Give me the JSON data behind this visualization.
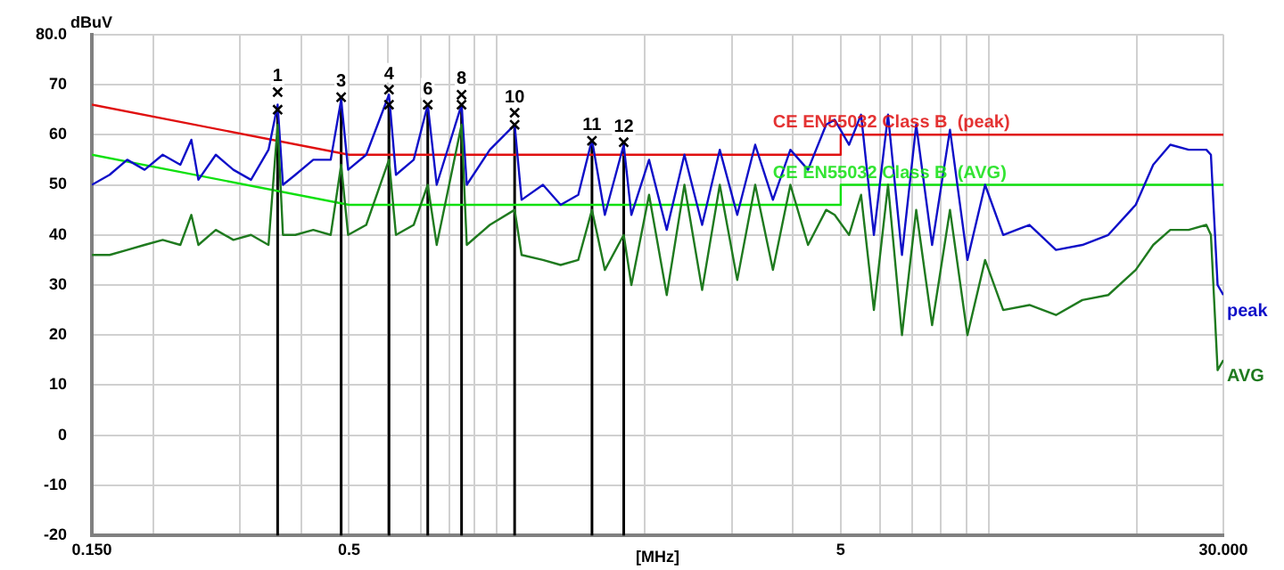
{
  "chart_data": {
    "type": "line",
    "xlabel": "[MHz]",
    "ylabel": "dBuV",
    "log": "x",
    "grid": true,
    "legend": false,
    "xlim": [
      0.15,
      30
    ],
    "ylim": [
      -20,
      80
    ],
    "xticks": [
      {
        "value": 0.15,
        "label": "0.150"
      },
      {
        "value": 0.2,
        "label": null
      },
      {
        "value": 0.3,
        "label": null
      },
      {
        "value": 0.4,
        "label": null
      },
      0.5,
      {
        "value": 0.6,
        "label": null
      },
      {
        "value": 0.7,
        "label": null
      },
      {
        "value": 0.8,
        "label": null
      },
      {
        "value": 0.9,
        "label": null
      },
      {
        "value": 1,
        "label": null
      },
      {
        "value": 2,
        "label": null
      },
      {
        "value": 3,
        "label": null
      },
      {
        "value": 4,
        "label": null
      },
      5,
      {
        "value": 6,
        "label": null
      },
      {
        "value": 7,
        "label": null
      },
      {
        "value": 8,
        "label": null
      },
      {
        "value": 9,
        "label": null
      },
      {
        "value": 10,
        "label": null
      },
      {
        "value": 20,
        "label": null
      },
      {
        "value": 30,
        "label": "30.000"
      }
    ],
    "yticks": [
      -20,
      -10,
      0,
      10,
      20,
      30,
      40,
      50,
      60,
      70,
      {
        "value": 80,
        "label": "80.0"
      }
    ],
    "series": [
      {
        "name": "CE EN55032 Class B  (peak)",
        "color": "#e01010",
        "x": [
          0.15,
          0.5,
          5,
          5,
          30
        ],
        "values": [
          66,
          56,
          56,
          60,
          60
        ]
      },
      {
        "name": "CE EN55032 Class B  (AVG)",
        "color": "#10e010",
        "x": [
          0.15,
          0.5,
          5,
          5,
          30
        ],
        "values": [
          56,
          46,
          46,
          50,
          50
        ]
      },
      {
        "name": "peak",
        "color": "#1010c8",
        "x": [
          0.15,
          0.163,
          0.177,
          0.192,
          0.209,
          0.227,
          0.239,
          0.247,
          0.268,
          0.291,
          0.316,
          0.343,
          0.358,
          0.367,
          0.389,
          0.423,
          0.459,
          0.482,
          0.498,
          0.542,
          0.603,
          0.623,
          0.677,
          0.723,
          0.754,
          0.847,
          0.868,
          0.967,
          1.086,
          1.122,
          1.24,
          1.347,
          1.463,
          1.56,
          1.657,
          1.81,
          1.876,
          2.038,
          2.214,
          2.405,
          2.613,
          2.838,
          3.08,
          3.35,
          3.64,
          3.95,
          4.29,
          4.67,
          4.86,
          5.2,
          5.5,
          5.84,
          6.24,
          6.66,
          7.12,
          7.67,
          8.34,
          9.05,
          9.83,
          10.7,
          12.1,
          13.7,
          15.5,
          17.5,
          19.9,
          21.6,
          23.4,
          25.5,
          27.7,
          28.3,
          29.2,
          30
        ],
        "values": [
          50,
          52,
          55,
          53,
          56,
          54,
          59,
          51,
          56,
          53,
          51,
          57,
          66,
          50,
          52,
          55,
          55,
          67,
          53,
          56,
          68,
          52,
          55,
          66,
          50,
          66,
          50,
          57,
          62,
          47,
          50,
          46,
          48,
          59,
          44,
          58,
          44,
          55,
          41,
          56,
          42,
          57,
          44,
          58,
          47,
          57,
          53,
          62,
          63,
          58,
          64,
          40,
          64,
          36,
          62,
          38,
          61,
          35,
          50,
          40,
          42,
          37,
          38,
          40,
          46,
          54,
          58,
          57,
          57,
          56,
          30,
          28
        ]
      },
      {
        "name": "AVG",
        "color": "#1f7a1f",
        "x": [
          0.15,
          0.163,
          0.177,
          0.192,
          0.209,
          0.227,
          0.239,
          0.247,
          0.268,
          0.291,
          0.316,
          0.343,
          0.358,
          0.367,
          0.389,
          0.423,
          0.459,
          0.482,
          0.498,
          0.542,
          0.603,
          0.623,
          0.677,
          0.723,
          0.754,
          0.847,
          0.868,
          0.967,
          1.086,
          1.122,
          1.24,
          1.347,
          1.463,
          1.56,
          1.657,
          1.81,
          1.876,
          2.038,
          2.214,
          2.405,
          2.613,
          2.838,
          3.08,
          3.35,
          3.64,
          3.95,
          4.29,
          4.67,
          4.86,
          5.2,
          5.5,
          5.84,
          6.24,
          6.66,
          7.12,
          7.67,
          8.34,
          9.05,
          9.83,
          10.7,
          12.1,
          13.7,
          15.5,
          17.5,
          19.9,
          21.6,
          23.4,
          25.5,
          27.7,
          28.3,
          29.2,
          30
        ],
        "values": [
          36,
          36,
          37,
          38,
          39,
          38,
          44,
          38,
          41,
          39,
          40,
          38,
          62,
          40,
          40,
          41,
          40,
          54,
          40,
          42,
          55,
          40,
          42,
          50,
          38,
          62,
          38,
          42,
          45,
          36,
          35,
          34,
          35,
          45,
          33,
          40,
          30,
          48,
          28,
          50,
          29,
          50,
          31,
          50,
          33,
          50,
          38,
          45,
          44,
          40,
          48,
          25,
          50,
          20,
          45,
          22,
          45,
          20,
          35,
          25,
          26,
          24,
          27,
          28,
          33,
          38,
          41,
          41,
          42,
          40,
          13,
          15
        ]
      },
      {
        "type": "scatter",
        "marker": "cross",
        "color": "#000000",
        "x": [
          0.358,
          0.358,
          0.482,
          0.603,
          0.603,
          0.723,
          0.847,
          0.847,
          1.086,
          1.086,
          1.56,
          1.81
        ],
        "values": [
          68.5,
          65,
          67.5,
          69,
          66,
          66,
          68,
          66,
          62,
          64.4,
          58.8,
          58.5
        ]
      }
    ],
    "ref_lines": [
      {
        "axis": "x",
        "value": 0.358,
        "color": "#000000"
      },
      {
        "axis": "x",
        "value": 0.482,
        "color": "#000000"
      },
      {
        "axis": "x",
        "value": 0.603,
        "color": "#000000"
      },
      {
        "axis": "x",
        "value": 0.723,
        "color": "#000000"
      },
      {
        "axis": "x",
        "value": 0.847,
        "color": "#000000"
      },
      {
        "axis": "x",
        "value": 1.086,
        "color": "#000000"
      },
      {
        "axis": "x",
        "value": 1.56,
        "color": "#000000"
      },
      {
        "axis": "x",
        "value": 1.81,
        "color": "#000000"
      }
    ],
    "annotations": [
      {
        "text": "1",
        "x": 0.358,
        "y": 68.5
      },
      {
        "text": "3",
        "x": 0.482,
        "y": 67.5
      },
      {
        "text": "4",
        "x": 0.603,
        "y": 69
      },
      {
        "text": "6",
        "x": 0.723,
        "y": 66
      },
      {
        "text": "8",
        "x": 0.847,
        "y": 68
      },
      {
        "text": "10",
        "x": 1.086,
        "y": 64.4
      },
      {
        "text": "11",
        "x": 1.56,
        "y": 58.8
      },
      {
        "text": "12",
        "x": 1.81,
        "y": 58.5
      }
    ]
  }
}
